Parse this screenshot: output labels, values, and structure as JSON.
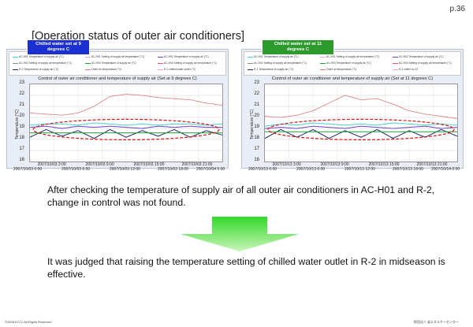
{
  "page_number": "p.36",
  "title": "[Operation status of outer air conditioners]",
  "charts": [
    {
      "title": "Control of outer air conditioner and temperature of supply air (Set at 9 degrees C)",
      "badge": "Chilled water set at 9 degrees C",
      "ylabel": "Temperature [°C]",
      "legend": [
        "AC-H01 Temperature of supply air (°C)",
        "AC-H01 Setting of supply air temperature (°C)",
        "AC-H02 Temperature of supply air (°C)",
        "AC-H02 Setting of supply air temperature (°C)",
        "AC-H03 Temperature of supply air (°C)",
        "AC-H03 Setting of supply air temperature (°C)",
        "R-2 Temperature of supply air (°C)",
        "Outer air temperature (°C)",
        "R-2 chilled water outlet (°C)"
      ],
      "x_ticks_top": [
        "2007/10/03 3:00",
        "2007/10/03 9:00",
        "2007/10/03 15:00",
        "2007/10/03 21:00"
      ],
      "x_ticks_bottom": [
        "2007/10/03 0:00",
        "2007/10/03 6:00",
        "2007/10/03 12:00",
        "2007/10/03 18:00",
        "2007/10/04 0:00"
      ]
    },
    {
      "title": "Control of outer air conditioner and temperature of supply air (Set at 11 degrees C)",
      "badge": "Chilled water set at 11 degrees C",
      "ylabel": "Temperature [°C]",
      "legend": [
        "AC-H01 Temperature of supply air (°C)",
        "AC-H01 Setting of supply air temperature (°C)",
        "AC-H02 Temperature of supply air (°C)",
        "AC-H02 Setting of supply air temperature (°C)",
        "AC-H03 Temperature of supply air (°C)",
        "AC-H03 Setting of supply air temperature (°C)",
        "R-2 Temperature of supply air (°C)",
        "Outer air temperature (°C)",
        "R-2 chiller no.22"
      ],
      "x_ticks_top": [
        "2007/10/13 3:00",
        "2007/10/13 9:00",
        "2007/10/13 15:00",
        "2007/10/13 21:00"
      ],
      "x_ticks_bottom": [
        "2007/10/13 0:00",
        "2007/10/13 6:00",
        "2007/10/13 12:00",
        "2007/10/13 18:00",
        "2007/10/14 0:00"
      ]
    }
  ],
  "chart_data": [
    {
      "type": "line",
      "title": "Control of outer air conditioner and temperature of supply air (Set at 9 degrees C)",
      "ylabel": "Temperature [°C]",
      "ylim": [
        16,
        23
      ],
      "yticks": [
        16,
        17,
        18,
        19,
        20,
        21,
        22,
        23
      ],
      "grid": true,
      "x": [
        "0:00",
        "2:00",
        "4:00",
        "6:00",
        "8:00",
        "10:00",
        "12:00",
        "14:00",
        "16:00",
        "18:00",
        "20:00",
        "22:00",
        "24:00"
      ],
      "series": [
        {
          "name": "Outer air temperature (°C)",
          "color": "#d9797b",
          "values": [
            20.4,
            20.3,
            20.2,
            20.4,
            21.0,
            21.9,
            22.1,
            22.0,
            21.8,
            21.7,
            21.6,
            21.3,
            21.1
          ]
        },
        {
          "name": "AC-H01 Temperature of supply air (°C)",
          "color": "#3fd0d0",
          "values": [
            19.3,
            19.4,
            19.4,
            19.3,
            19.5,
            19.4,
            19.3,
            19.4,
            19.3,
            19.4,
            19.4,
            19.3,
            19.4
          ]
        },
        {
          "name": "AC-H02 Temperature of supply air (°C)",
          "color": "#6c3fc9",
          "values": [
            19.1,
            19.2,
            19.0,
            19.2,
            19.1,
            19.2,
            19.1,
            19.0,
            19.2,
            19.1,
            19.2,
            19.1,
            19.1
          ]
        },
        {
          "name": "R-2 Temperature of supply air (°C)",
          "color": "#1a2a6b",
          "values": [
            18.2,
            18.9,
            18.3,
            18.8,
            18.1,
            18.9,
            18.2,
            18.8,
            18.3,
            18.9,
            18.2,
            18.8,
            18.4
          ]
        },
        {
          "name": "AC-H03 Setting of supply air temperature (°C)",
          "color": "#1f9e3a",
          "values": [
            18.6,
            18.6,
            18.6,
            18.6,
            18.6,
            18.6,
            18.6,
            18.6,
            18.6,
            18.6,
            18.6,
            18.6,
            18.6
          ]
        }
      ]
    },
    {
      "type": "line",
      "title": "Control of outer air conditioner and temperature of supply air (Set at 11 degrees C)",
      "ylabel": "Temperature [°C]",
      "ylim": [
        16,
        23
      ],
      "yticks": [
        16,
        17,
        18,
        19,
        20,
        21,
        22,
        23
      ],
      "grid": true,
      "x": [
        "0:00",
        "2:00",
        "4:00",
        "6:00",
        "8:00",
        "10:00",
        "12:00",
        "14:00",
        "16:00",
        "18:00",
        "20:00",
        "22:00",
        "24:00"
      ],
      "series": [
        {
          "name": "Outer air temperature (°C)",
          "color": "#d9797b",
          "values": [
            20.1,
            20.0,
            20.2,
            20.6,
            21.3,
            22.0,
            21.6,
            21.7,
            21.2,
            20.6,
            20.3,
            20.1,
            19.9
          ]
        },
        {
          "name": "AC-H01 Temperature of supply air (°C)",
          "color": "#3fd0d0",
          "values": [
            19.2,
            19.4,
            19.3,
            19.5,
            19.4,
            19.3,
            19.4,
            19.3,
            19.5,
            19.4,
            19.3,
            19.4,
            19.3
          ]
        },
        {
          "name": "AC-H02 Temperature of supply air (°C)",
          "color": "#6c3fc9",
          "values": [
            19.0,
            19.1,
            19.0,
            19.2,
            19.1,
            19.0,
            19.2,
            19.1,
            19.0,
            19.1,
            19.2,
            19.0,
            19.1
          ]
        },
        {
          "name": "R-2 Temperature of supply air (°C)",
          "color": "#1a2a6b",
          "values": [
            18.1,
            18.9,
            18.2,
            18.9,
            18.1,
            18.8,
            18.2,
            18.9,
            18.1,
            18.8,
            18.2,
            18.9,
            18.3
          ]
        },
        {
          "name": "AC-H03 Setting of supply air temperature (°C)",
          "color": "#1f9e3a",
          "values": [
            18.7,
            18.7,
            18.7,
            18.7,
            18.7,
            18.7,
            18.7,
            18.7,
            18.7,
            18.7,
            18.7,
            18.7,
            18.7
          ]
        }
      ]
    }
  ],
  "para1": "After checking the temperature of supply air of all outer air conditioners in AC-H01 and R-2, change in control was not found.",
  "para2": "It was judged that raising the temperature setting of chilled water outlet in R-2 in midseason is effective.",
  "footer": {
    "copyright": "©2008 ECCJ All Rights Reserved",
    "org": "財団法人 省エネルギーセンター"
  },
  "colors": {
    "badge_left": "#1c2fd0",
    "badge_right": "#2c9a2c",
    "arrow_top": "#33d92b",
    "arrow_bottom": "#c8f5b8",
    "ellipse": "#d21414"
  }
}
